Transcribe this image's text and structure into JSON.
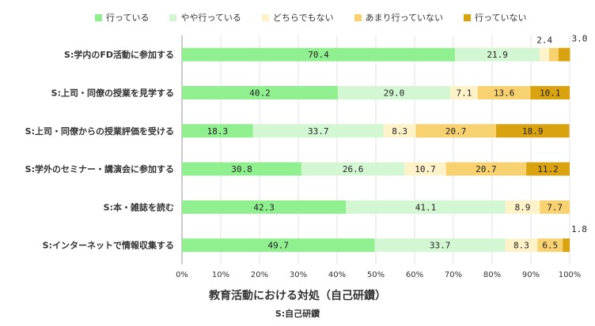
{
  "chart_data": {
    "type": "bar",
    "orientation": "horizontal",
    "stacked": true,
    "categories": [
      "S:学内のFD活動に参加する",
      "S:上司・同僚の授業を見学する",
      "S:上司・同僚からの授業評価を受ける",
      "S:学外のセミナー・講演会に参加する",
      "S:本・雑誌を読む",
      "S:インターネットで情報収集する"
    ],
    "series": [
      {
        "name": "行っている",
        "color": "#90f090",
        "values": [
          70.4,
          40.2,
          18.3,
          30.8,
          42.3,
          49.7
        ]
      },
      {
        "name": "やや行っている",
        "color": "#d3f7d3",
        "values": [
          21.9,
          29.0,
          33.7,
          26.6,
          41.1,
          33.7
        ]
      },
      {
        "name": "どちらでもない",
        "color": "#fdf2c8",
        "values": [
          2.4,
          7.1,
          8.3,
          10.7,
          8.9,
          8.3
        ]
      },
      {
        "name": "あまり行っていない",
        "color": "#f8d270",
        "values": [
          2.4,
          13.6,
          20.7,
          20.7,
          7.7,
          6.5
        ]
      },
      {
        "name": "行っていない",
        "color": "#d9a20f",
        "values": [
          3.0,
          10.1,
          18.9,
          11.2,
          0,
          1.8
        ]
      }
    ],
    "labels": [
      [
        "70.4",
        "21.9",
        "2.4",
        "",
        "3.0"
      ],
      [
        "40.2",
        "29.0",
        "7.1",
        "13.6",
        "10.1"
      ],
      [
        "18.3",
        "33.7",
        "8.3",
        "20.7",
        "18.9"
      ],
      [
        "30.8",
        "26.6",
        "10.7",
        "20.7",
        "11.2"
      ],
      [
        "42.3",
        "41.1",
        "8.9",
        "7.7",
        ""
      ],
      [
        "49.7",
        "33.7",
        "8.3",
        "6.5",
        "1.8"
      ]
    ],
    "xlim": [
      0,
      100
    ],
    "xticks": [
      "0%",
      "10%",
      "20%",
      "30%",
      "40%",
      "50%",
      "60%",
      "70%",
      "80%",
      "90%",
      "100%"
    ],
    "xlabel": "教育活動における対処（自己研鑽）",
    "xsublabel": "S:自己研鑽",
    "legend_position": "top"
  }
}
